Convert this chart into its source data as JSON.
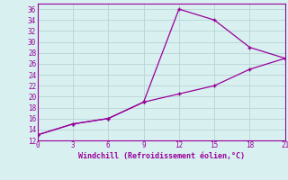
{
  "line1_x": [
    0,
    3,
    6,
    9,
    12,
    15,
    18,
    21
  ],
  "line1_y": [
    13,
    15,
    16,
    19,
    36,
    34,
    29,
    27
  ],
  "line2_x": [
    0,
    3,
    6,
    9,
    12,
    15,
    18,
    21
  ],
  "line2_y": [
    13,
    15,
    16,
    19,
    20.5,
    22,
    25,
    27
  ],
  "line_color": "#990099",
  "bg_color": "#d8f0f0",
  "grid_color": "#b8d4d4",
  "xlabel": "Windchill (Refroidissement éolien,°C)",
  "xlabel_color": "#990099",
  "ylabel_ticks": [
    12,
    14,
    16,
    18,
    20,
    22,
    24,
    26,
    28,
    30,
    32,
    34,
    36
  ],
  "xticks": [
    0,
    3,
    6,
    9,
    12,
    15,
    18,
    21
  ],
  "xlim": [
    0,
    21
  ],
  "ylim": [
    12,
    37
  ],
  "marker": "+"
}
